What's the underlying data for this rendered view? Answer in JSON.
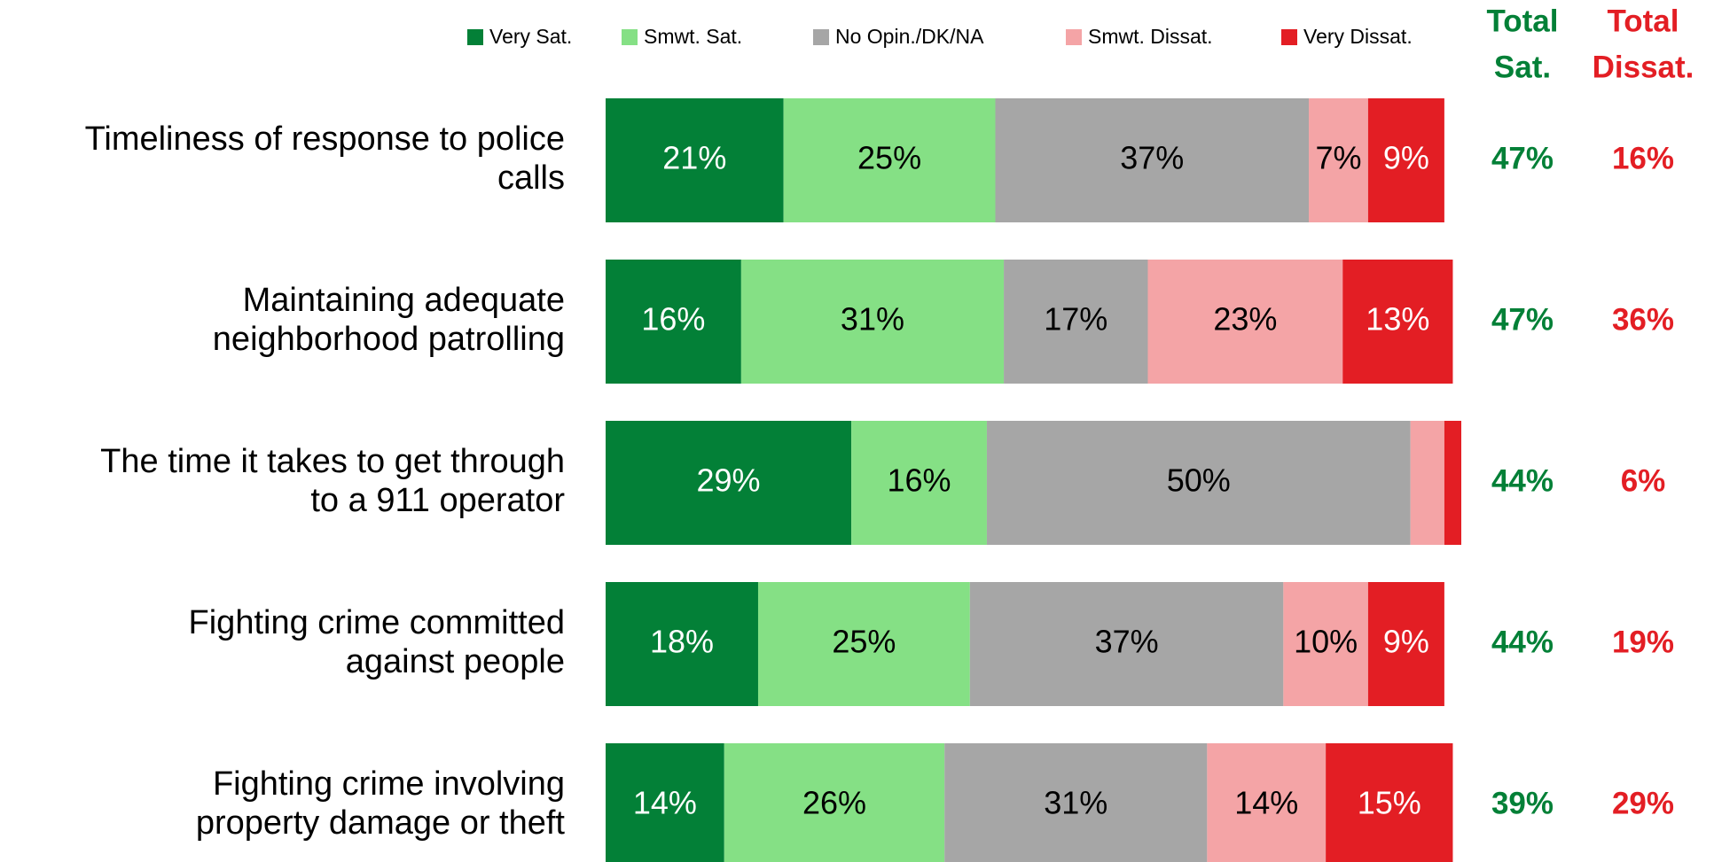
{
  "chart_data": {
    "type": "stacked_bar_horizontal",
    "categories": [
      [
        "Timeliness of response to police",
        "calls"
      ],
      [
        "Maintaining adequate",
        "neighborhood patrolling"
      ],
      [
        "The time it takes to get through",
        "to a 911 operator"
      ],
      [
        "Fighting crime committed",
        "against people"
      ],
      [
        "Fighting crime involving",
        "property damage or theft"
      ]
    ],
    "series": [
      {
        "name": "Very Sat.",
        "color": "#038037",
        "values": [
          21,
          16,
          29,
          18,
          14
        ],
        "value_labels": [
          "21%",
          "16%",
          "29%",
          "18%",
          "14%"
        ]
      },
      {
        "name": "Smwt. Sat.",
        "color": "#85e085",
        "values": [
          25,
          31,
          16,
          25,
          26
        ],
        "value_labels": [
          "25%",
          "31%",
          "16%",
          "25%",
          "26%"
        ]
      },
      {
        "name": "No Opin./DK/NA",
        "color": "#a6a6a6",
        "values": [
          37,
          17,
          50,
          37,
          31
        ],
        "value_labels": [
          "37%",
          "17%",
          "50%",
          "37%",
          "31%"
        ]
      },
      {
        "name": "Smwt. Dissat.",
        "color": "#f4a4a6",
        "values": [
          7,
          23,
          4,
          10,
          14
        ],
        "value_labels": [
          "7%",
          "23%",
          null,
          "10%",
          "14%"
        ]
      },
      {
        "name": "Very Dissat.",
        "color": "#e31e24",
        "values": [
          9,
          13,
          2,
          9,
          15
        ],
        "value_labels": [
          "9%",
          "13%",
          null,
          "9%",
          "15%"
        ]
      }
    ],
    "totals": [
      {
        "name": [
          "Total",
          "Sat."
        ],
        "color": "#038037",
        "values": [
          47,
          47,
          44,
          44,
          39
        ],
        "value_labels": [
          "47%",
          "47%",
          "44%",
          "44%",
          "39%"
        ]
      },
      {
        "name": [
          "Total",
          "Dissat."
        ],
        "color": "#e31e24",
        "values": [
          16,
          36,
          6,
          19,
          29
        ],
        "value_labels": [
          "16%",
          "36%",
          "6%",
          "19%",
          "29%"
        ]
      }
    ],
    "legend": "top"
  }
}
